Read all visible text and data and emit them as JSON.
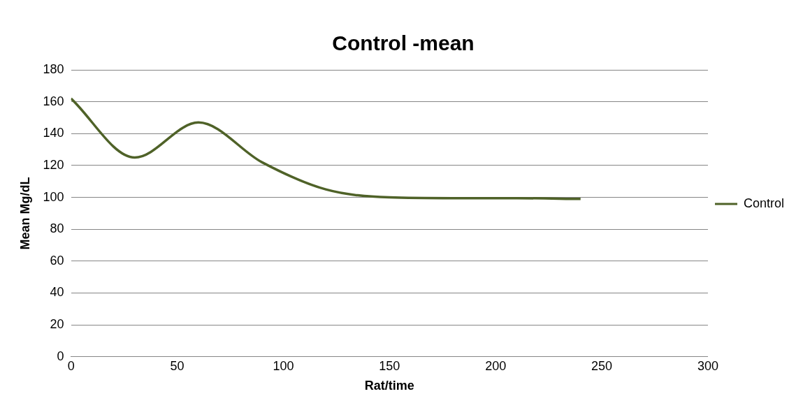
{
  "chart_data": {
    "type": "line",
    "title": "Control -mean",
    "xlabel": "Rat/time",
    "ylabel": "Mean Mg/dL",
    "x": [
      0,
      30,
      60,
      90,
      120,
      150,
      180,
      210,
      240
    ],
    "series": [
      {
        "name": "Control",
        "color": "#4f6228",
        "values": [
          162,
          125,
          147,
          122,
          105,
          100,
          99.5,
          99.5,
          99
        ]
      }
    ],
    "xlim": [
      0,
      300
    ],
    "xticks": [
      0,
      50,
      100,
      150,
      200,
      250,
      300
    ],
    "ylim": [
      0,
      180
    ],
    "yticks": [
      0,
      20,
      40,
      60,
      80,
      100,
      120,
      140,
      160,
      180
    ],
    "grid": "y",
    "legend": "right",
    "marker": "none",
    "line_style": "solid"
  }
}
